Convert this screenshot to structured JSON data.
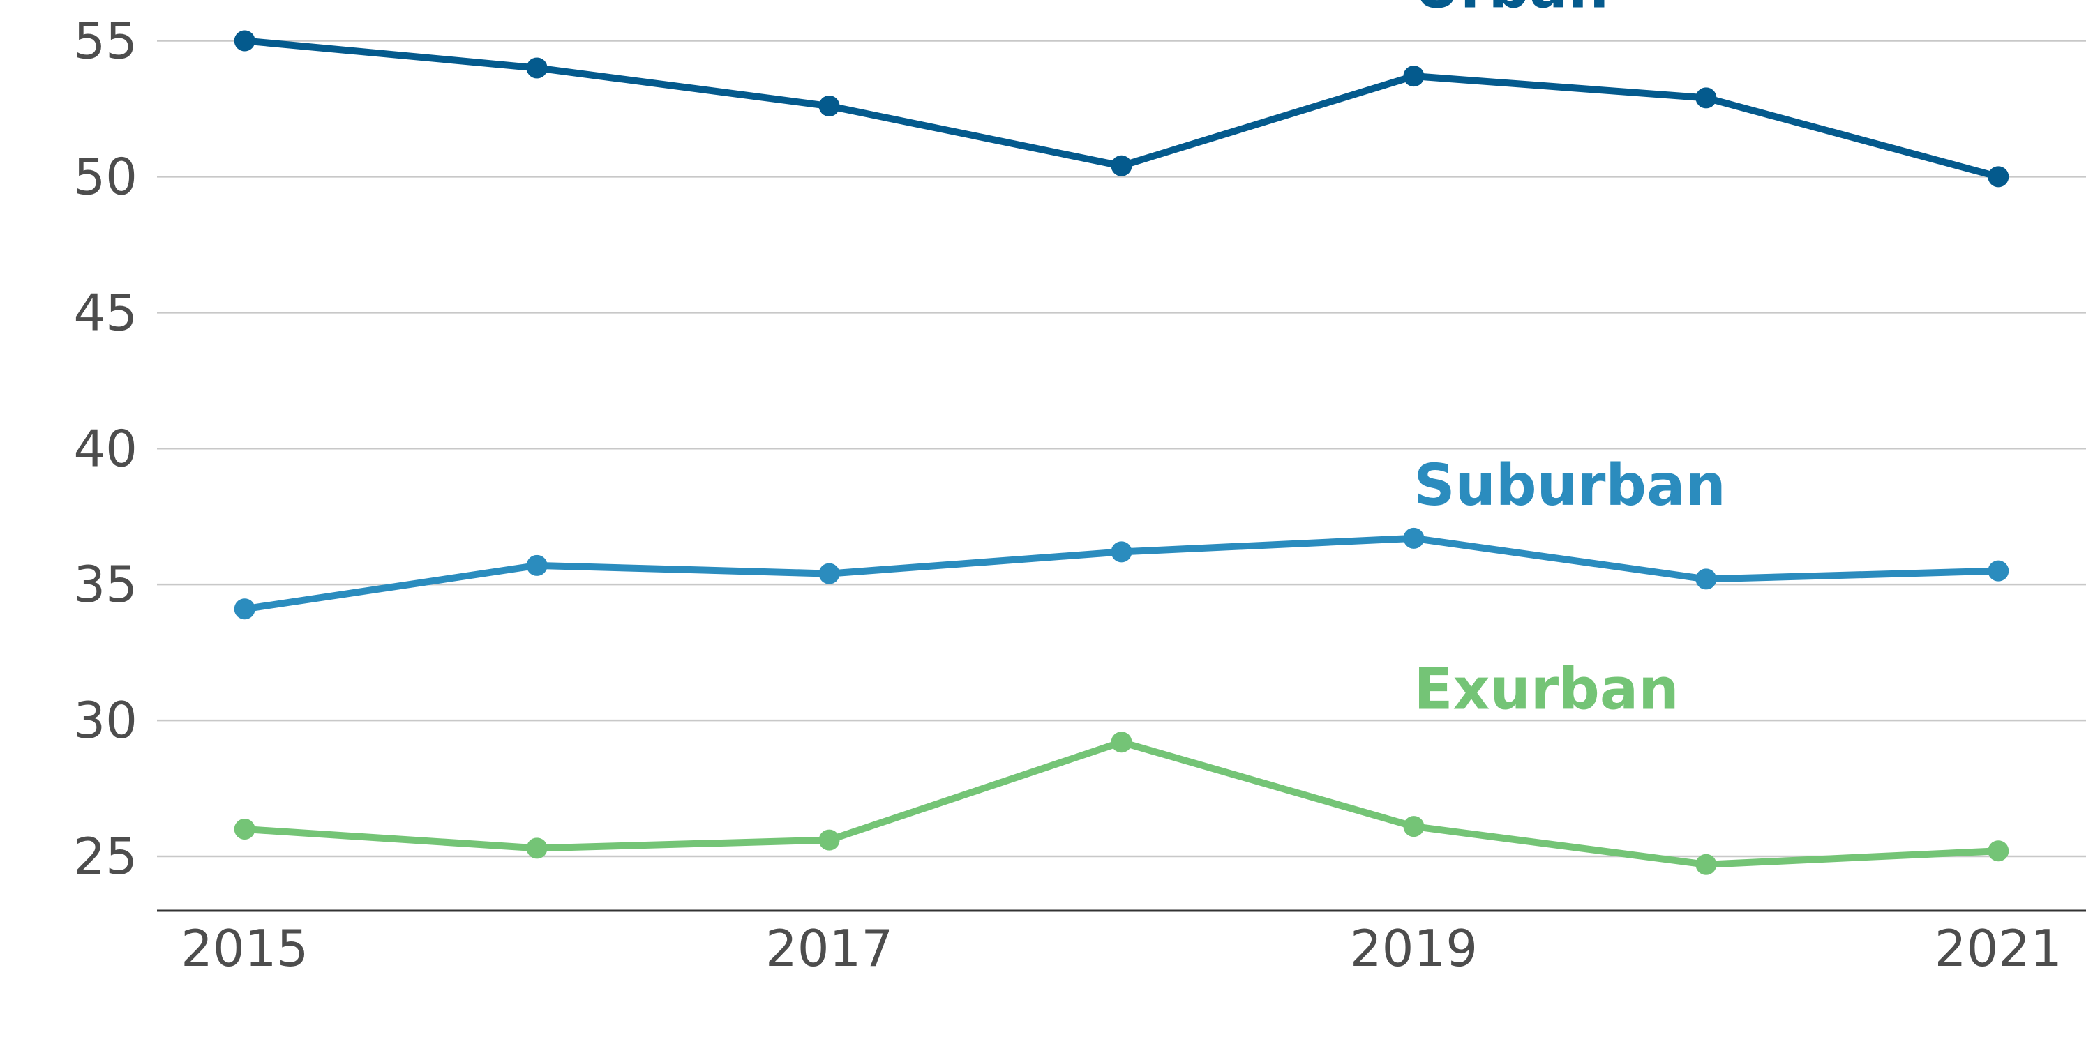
{
  "chart_data": {
    "type": "line",
    "title": "",
    "xlabel": "",
    "ylabel": "",
    "x": [
      2015,
      2016,
      2017,
      2018,
      2019,
      2020,
      2021
    ],
    "x_ticks": [
      "2015",
      "2017",
      "2019",
      "2021"
    ],
    "y_ticks": [
      "25",
      "30",
      "35",
      "40",
      "45",
      "50",
      "55"
    ],
    "ylim": [
      23,
      56.5
    ],
    "xlim": [
      2014.7,
      2021.3
    ],
    "grid": "horizontal",
    "legend": "inline labels",
    "series": [
      {
        "name": "Urban",
        "color": "#045a8d",
        "values": [
          55.0,
          54.0,
          52.6,
          50.4,
          53.7,
          52.9,
          50.0
        ]
      },
      {
        "name": "Suburban",
        "color": "#2b8cbe",
        "values": [
          34.1,
          35.7,
          35.4,
          36.2,
          36.7,
          35.2,
          35.5
        ]
      },
      {
        "name": "Exurban",
        "color": "#74c476",
        "values": [
          26.0,
          25.3,
          25.6,
          29.2,
          26.1,
          24.7,
          25.2
        ]
      }
    ]
  }
}
